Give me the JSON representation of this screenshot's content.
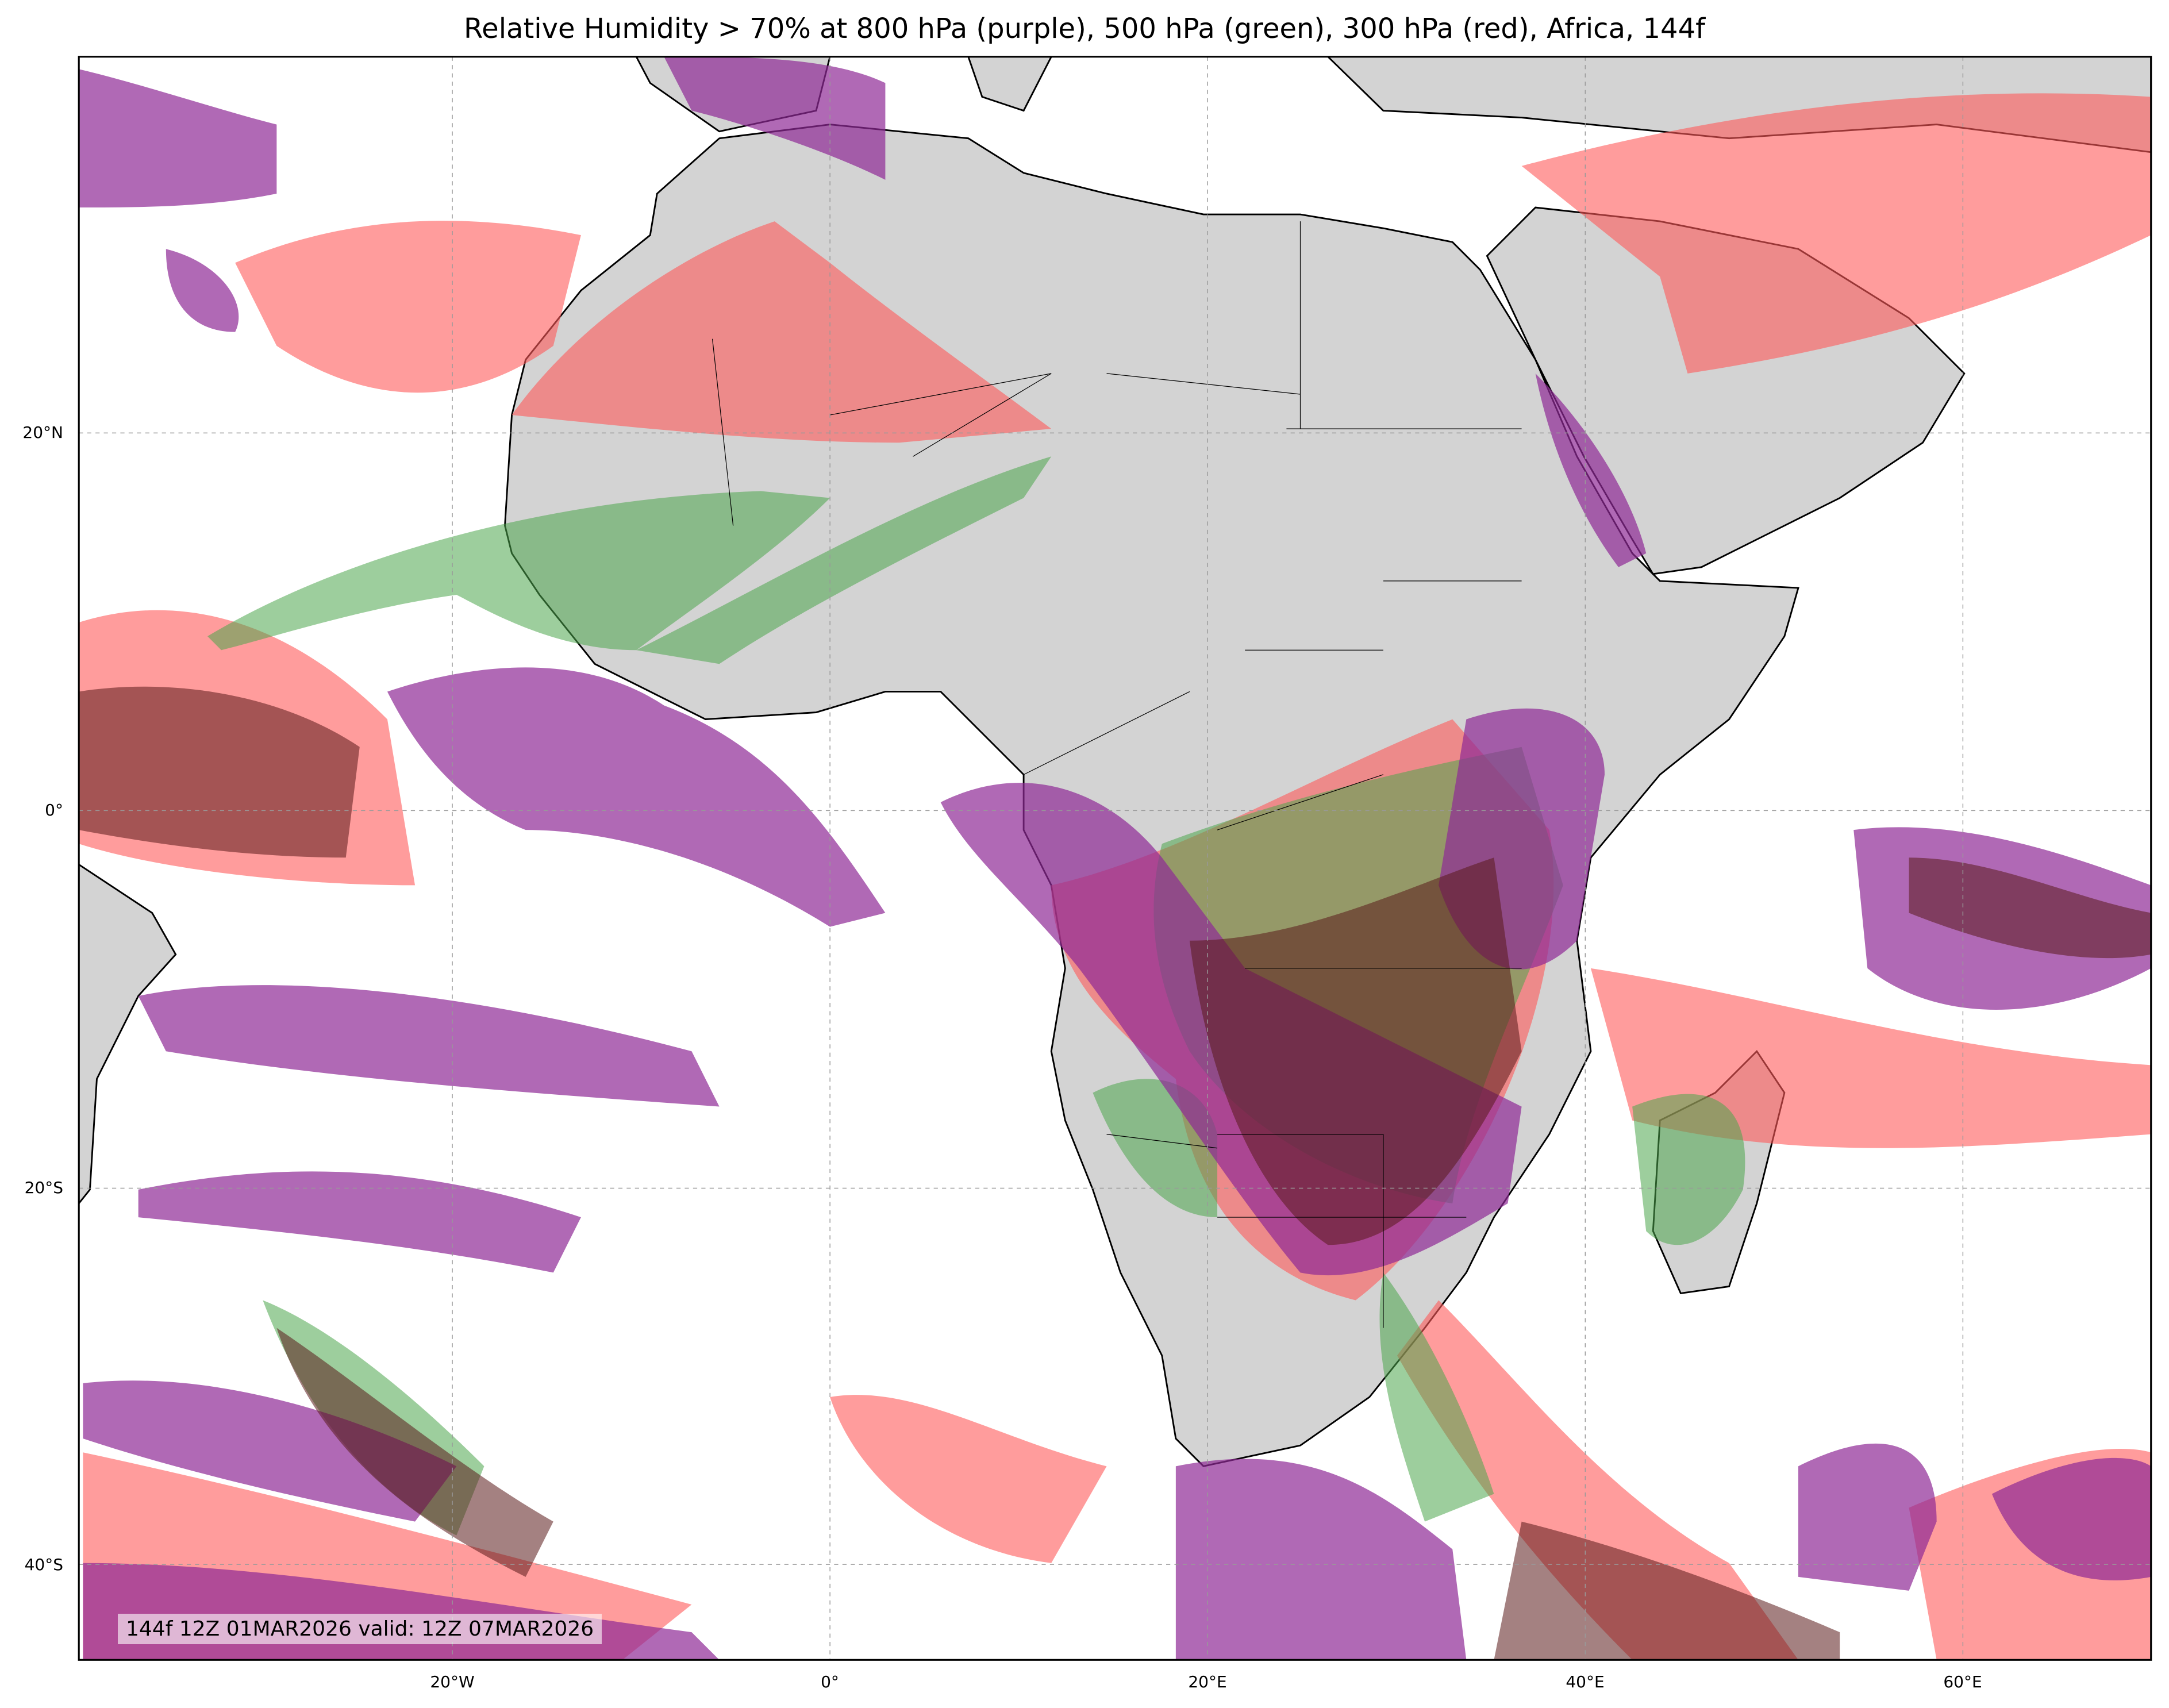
{
  "title": "Relative Humidity > 70% at 800 hPa (purple), 500 hPa (green), 300 hPa (red), Africa, 144f",
  "stamp": "144f 12Z 01MAR2026 valid: 12Z 07MAR2026",
  "lat_labels": [
    "20°N",
    "0°",
    "20°S",
    "40°S"
  ],
  "lon_labels": [
    "20°W",
    "0°",
    "20°E",
    "40°E",
    "60°E"
  ],
  "colors": {
    "purple_800hPa": "#a04ca8",
    "green_500hPa": "#6fb86f",
    "red_300hPa": "#ff7070",
    "land": "#d3d3d3"
  }
}
